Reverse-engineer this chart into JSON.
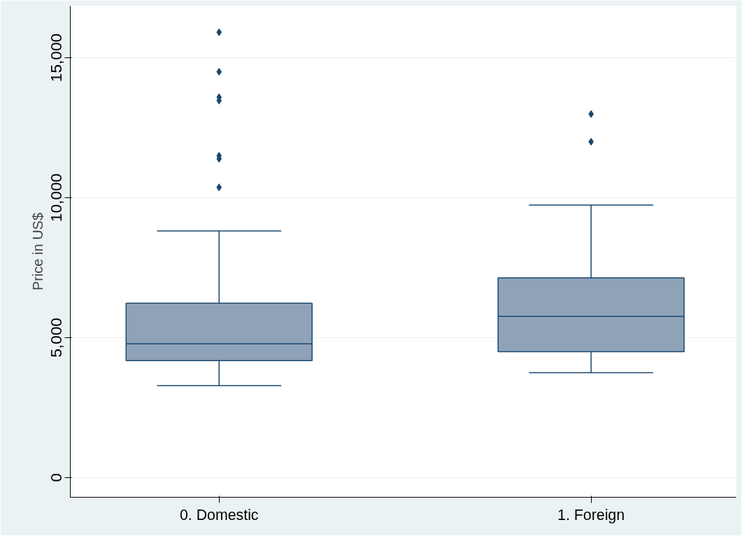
{
  "chart_data": {
    "type": "box",
    "ylabel": "Price in US$",
    "categories": [
      "0. Domestic",
      "1. Foreign"
    ],
    "series": [
      {
        "color": "#8ea3b8",
        "boxes": [
          {
            "low": 3290,
            "q1": 4180,
            "median": 4780,
            "q3": 6230,
            "high": 8810,
            "outliers": [
              10370,
              11390,
              11500,
              13470,
              13590,
              14500,
              15910
            ]
          },
          {
            "low": 3750,
            "q1": 4500,
            "median": 5760,
            "q3": 7140,
            "high": 9740,
            "outliers": [
              12000,
              12990
            ]
          }
        ]
      }
    ],
    "ylim": [
      -700,
      16850
    ],
    "yticks": [
      0,
      {
        "value": 5000,
        "label": "5,000"
      },
      {
        "value": 10000,
        "label": "10,000"
      },
      {
        "value": 15000,
        "label": "15,000"
      }
    ],
    "grid": "y",
    "marker": "diamond"
  }
}
